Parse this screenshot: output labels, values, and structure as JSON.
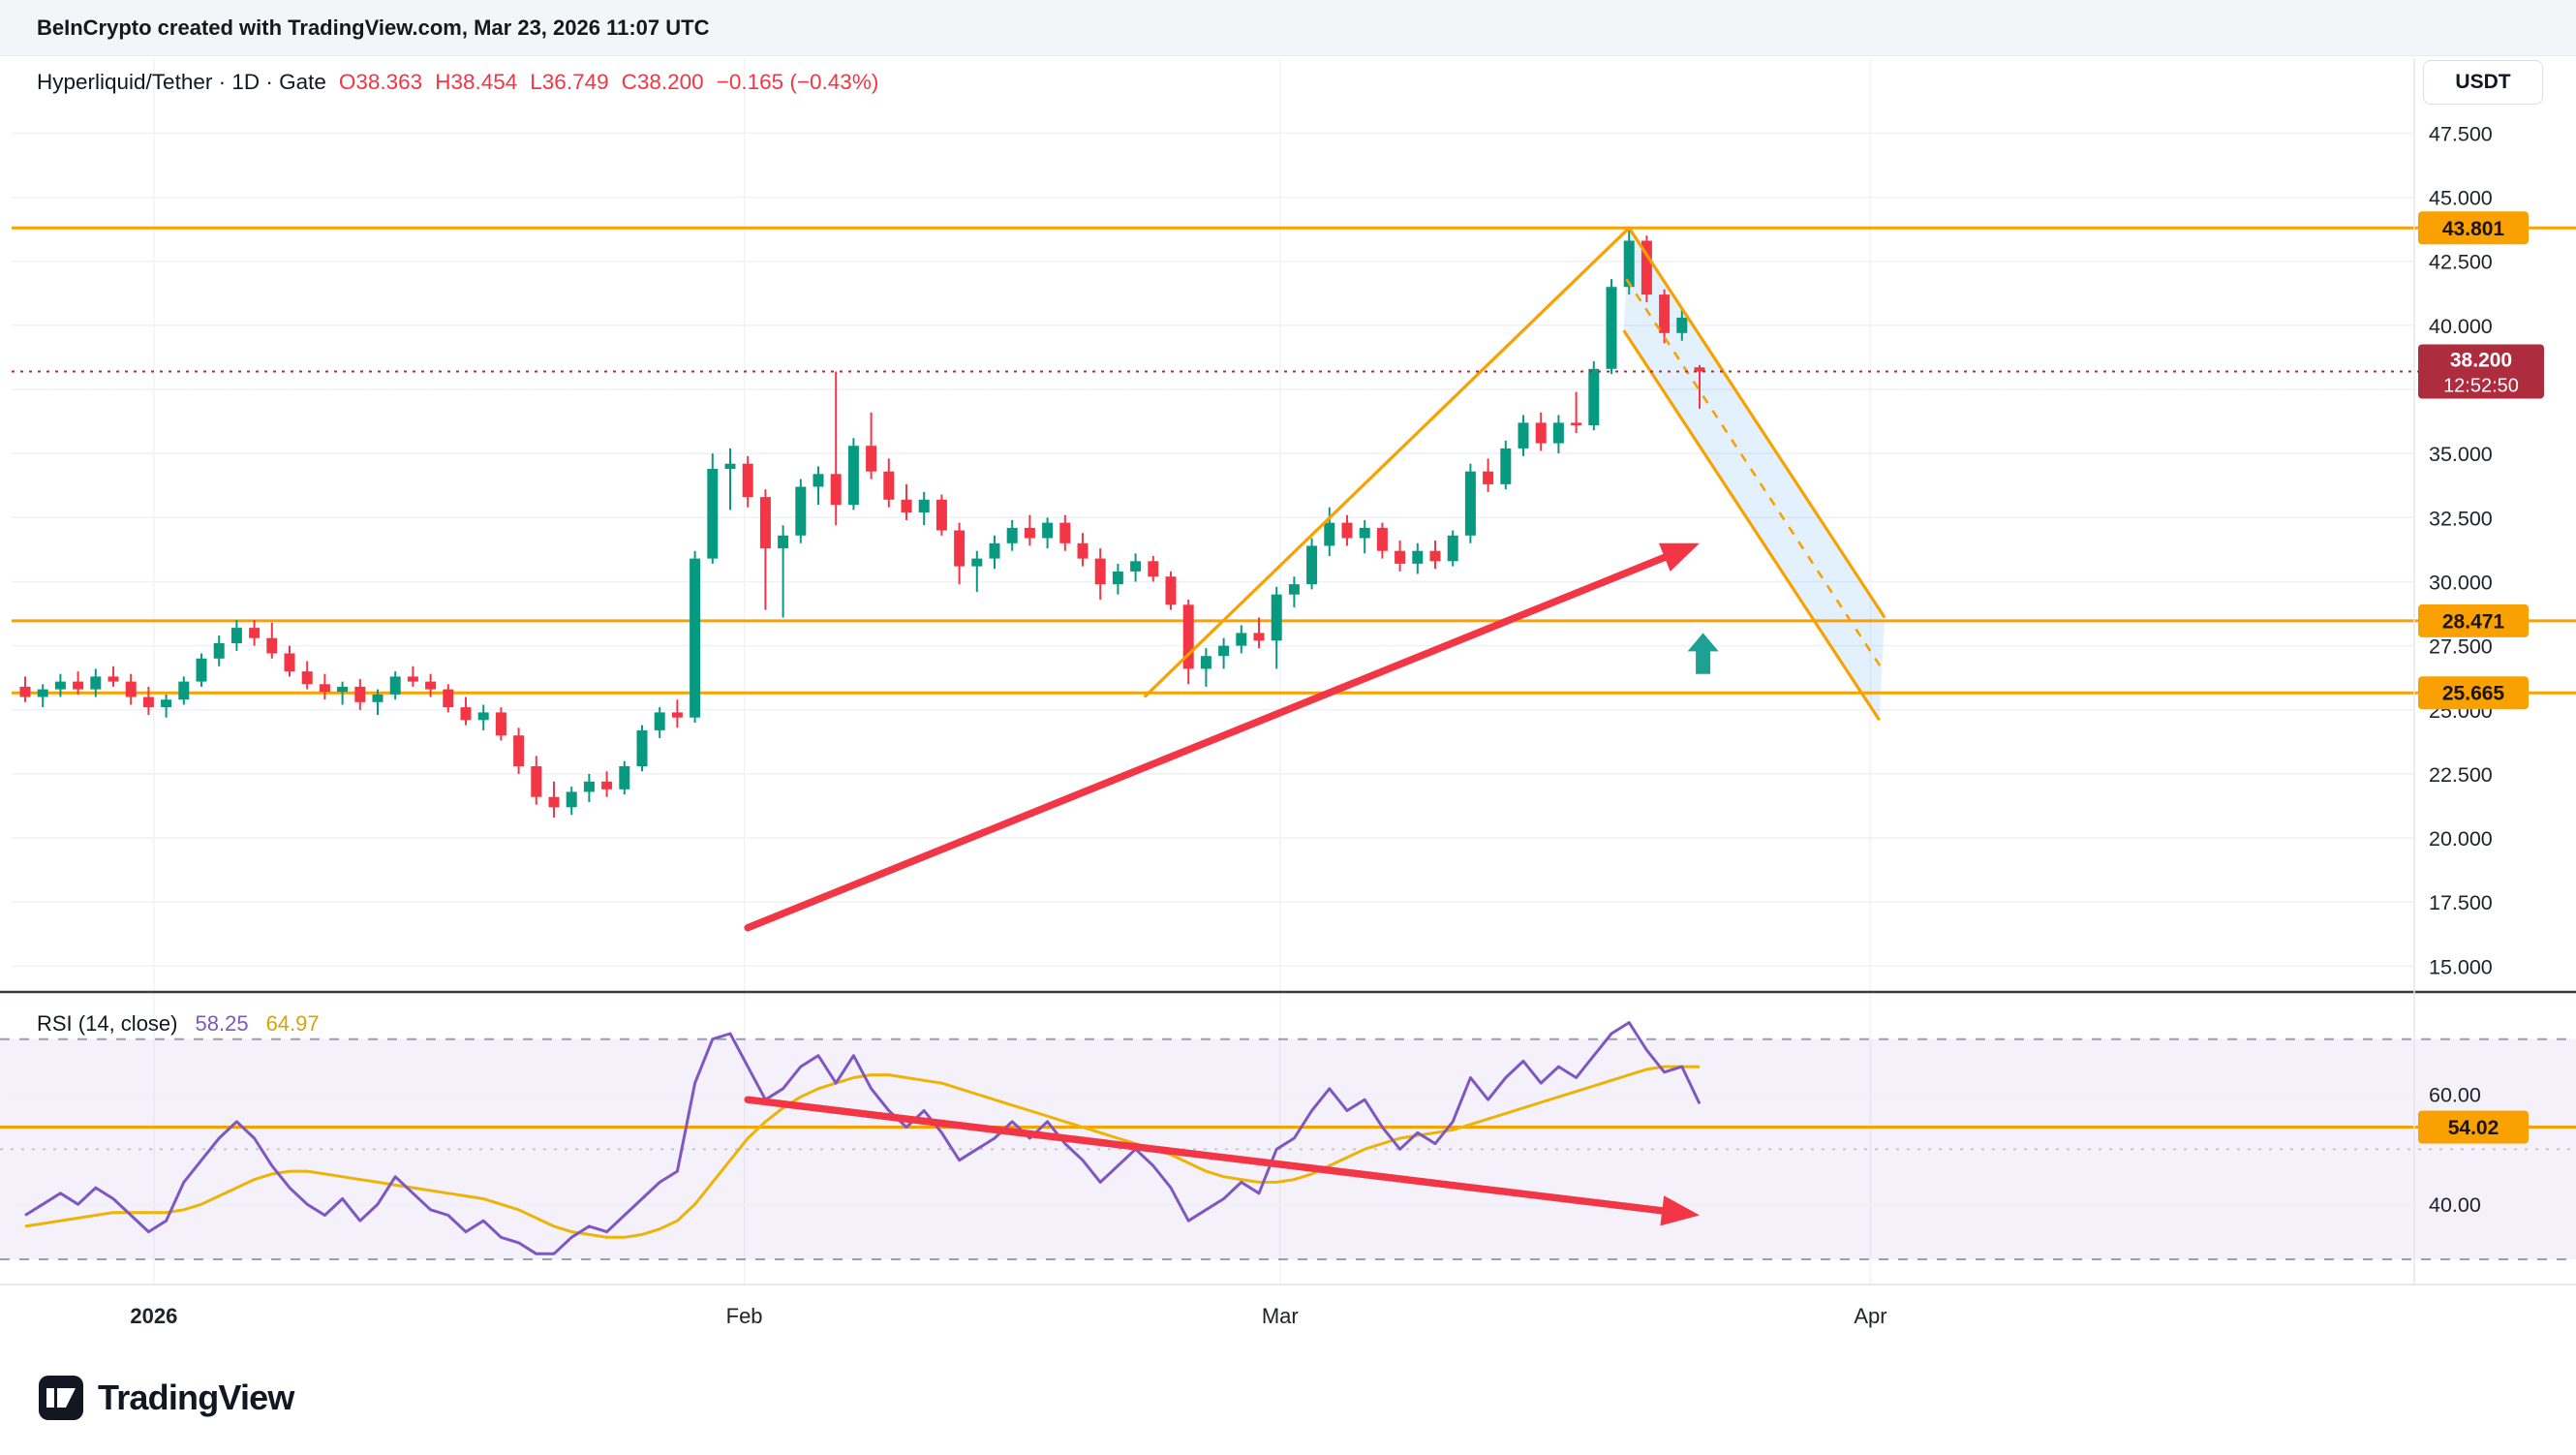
{
  "header": {
    "text": "BeInCrypto created with TradingView.com, Mar 23, 2026 11:07 UTC"
  },
  "legend": {
    "title": "Hyperliquid/Tether · 1D · Gate",
    "o": "O38.363",
    "h": "H38.454",
    "l": "L36.749",
    "c": "C38.200",
    "change": "−0.165 (−0.43%)"
  },
  "currency_button": {
    "label": "USDT"
  },
  "footer": {
    "brand": "TradingView"
  },
  "colors": {
    "candle_up": "#089981",
    "candle_down": "#f23645",
    "level_orange": "#f9a100",
    "label_orange_bg": "#f9a100",
    "label_orange_text": "#1c1405",
    "price_label_bg": "#ad2c3e",
    "price_label_text": "#ffffff",
    "rsi_purple": "#7e57c2",
    "rsi_ma_yellow": "#edb307",
    "rsi_band_fill": "rgba(126,87,194,0.085)",
    "band_dash": "#9b9eab",
    "mid_dash": "#c2c5cf",
    "arrow_red": "#f23645",
    "arrow_teal": "#1da192",
    "channel_fill": "rgba(33,150,243,0.13)",
    "grid": "#eef1f5",
    "axis_text": "#20232b",
    "separator_dark": "#363a45",
    "separator_light": "#dfe2e9"
  },
  "chart_data": {
    "type": "candlestick",
    "title": "Hyperliquid/Tether · 1D · Gate",
    "symbol": "Hyperliquid/Tether",
    "interval": "1D",
    "exchange": "Gate",
    "ohlc_current": {
      "open": 38.363,
      "high": 38.454,
      "low": 36.749,
      "close": 38.2,
      "change": -0.165,
      "change_pct": -0.43
    },
    "candles": [
      [
        25.9,
        26.3,
        25.3,
        25.5
      ],
      [
        25.5,
        26.0,
        25.1,
        25.8
      ],
      [
        25.8,
        26.4,
        25.5,
        26.1
      ],
      [
        26.1,
        26.5,
        25.6,
        25.8
      ],
      [
        25.8,
        26.6,
        25.5,
        26.3
      ],
      [
        26.3,
        26.7,
        25.9,
        26.1
      ],
      [
        26.1,
        26.4,
        25.2,
        25.5
      ],
      [
        25.5,
        25.9,
        24.8,
        25.1
      ],
      [
        25.1,
        25.6,
        24.7,
        25.4
      ],
      [
        25.4,
        26.3,
        25.2,
        26.1
      ],
      [
        26.1,
        27.2,
        25.9,
        27.0
      ],
      [
        27.0,
        27.9,
        26.7,
        27.6
      ],
      [
        27.6,
        28.5,
        27.3,
        28.2
      ],
      [
        28.2,
        28.5,
        27.5,
        27.8
      ],
      [
        27.8,
        28.4,
        27.0,
        27.2
      ],
      [
        27.2,
        27.5,
        26.3,
        26.5
      ],
      [
        26.5,
        26.9,
        25.8,
        26.0
      ],
      [
        26.0,
        26.4,
        25.4,
        25.7
      ],
      [
        25.7,
        26.1,
        25.2,
        25.9
      ],
      [
        25.9,
        26.2,
        25.0,
        25.3
      ],
      [
        25.3,
        25.8,
        24.8,
        25.6
      ],
      [
        25.6,
        26.5,
        25.4,
        26.3
      ],
      [
        26.3,
        26.7,
        25.9,
        26.1
      ],
      [
        26.1,
        26.4,
        25.5,
        25.8
      ],
      [
        25.8,
        26.0,
        24.9,
        25.1
      ],
      [
        25.1,
        25.5,
        24.4,
        24.6
      ],
      [
        24.6,
        25.2,
        24.2,
        24.9
      ],
      [
        24.9,
        25.1,
        23.8,
        24.0
      ],
      [
        24.0,
        24.3,
        22.5,
        22.8
      ],
      [
        22.8,
        23.2,
        21.3,
        21.6
      ],
      [
        21.6,
        22.2,
        20.8,
        21.2
      ],
      [
        21.2,
        22.0,
        20.9,
        21.8
      ],
      [
        21.8,
        22.5,
        21.4,
        22.2
      ],
      [
        22.2,
        22.6,
        21.6,
        21.9
      ],
      [
        21.9,
        23.0,
        21.7,
        22.8
      ],
      [
        22.8,
        24.4,
        22.6,
        24.2
      ],
      [
        24.2,
        25.1,
        23.9,
        24.9
      ],
      [
        24.9,
        25.4,
        24.3,
        24.7
      ],
      [
        24.7,
        31.2,
        24.5,
        30.9
      ],
      [
        30.9,
        35.0,
        30.7,
        34.4
      ],
      [
        34.4,
        35.2,
        32.8,
        34.6
      ],
      [
        34.6,
        34.9,
        32.9,
        33.3
      ],
      [
        33.3,
        33.6,
        28.9,
        31.3
      ],
      [
        31.3,
        32.2,
        28.6,
        31.8
      ],
      [
        31.8,
        34.0,
        31.5,
        33.7
      ],
      [
        33.7,
        34.5,
        33.0,
        34.2
      ],
      [
        34.2,
        38.2,
        32.2,
        33.0
      ],
      [
        33.0,
        35.6,
        32.8,
        35.3
      ],
      [
        35.3,
        36.6,
        34.0,
        34.3
      ],
      [
        34.3,
        34.8,
        32.9,
        33.2
      ],
      [
        33.2,
        33.8,
        32.4,
        32.7
      ],
      [
        32.7,
        33.5,
        32.2,
        33.2
      ],
      [
        33.2,
        33.4,
        31.8,
        32.0
      ],
      [
        32.0,
        32.3,
        29.9,
        30.6
      ],
      [
        30.6,
        31.2,
        29.6,
        30.9
      ],
      [
        30.9,
        31.8,
        30.5,
        31.5
      ],
      [
        31.5,
        32.4,
        31.2,
        32.1
      ],
      [
        32.1,
        32.6,
        31.4,
        31.7
      ],
      [
        31.7,
        32.5,
        31.3,
        32.3
      ],
      [
        32.3,
        32.6,
        31.2,
        31.5
      ],
      [
        31.5,
        31.9,
        30.6,
        30.9
      ],
      [
        30.9,
        31.3,
        29.3,
        29.9
      ],
      [
        29.9,
        30.7,
        29.5,
        30.4
      ],
      [
        30.4,
        31.1,
        30.0,
        30.8
      ],
      [
        30.8,
        31.0,
        30.0,
        30.2
      ],
      [
        30.2,
        30.4,
        28.9,
        29.1
      ],
      [
        29.1,
        29.3,
        26.0,
        26.6
      ],
      [
        26.6,
        27.4,
        25.9,
        27.1
      ],
      [
        27.1,
        27.8,
        26.6,
        27.5
      ],
      [
        27.5,
        28.3,
        27.2,
        28.0
      ],
      [
        28.0,
        28.6,
        27.4,
        27.7
      ],
      [
        27.7,
        29.8,
        26.6,
        29.5
      ],
      [
        29.5,
        30.2,
        29.0,
        29.9
      ],
      [
        29.9,
        31.7,
        29.7,
        31.4
      ],
      [
        31.4,
        32.9,
        31.0,
        32.3
      ],
      [
        32.3,
        32.6,
        31.4,
        31.7
      ],
      [
        31.7,
        32.4,
        31.1,
        32.1
      ],
      [
        32.1,
        32.3,
        30.9,
        31.2
      ],
      [
        31.2,
        31.6,
        30.4,
        30.7
      ],
      [
        30.7,
        31.5,
        30.3,
        31.2
      ],
      [
        31.2,
        31.6,
        30.5,
        30.8
      ],
      [
        30.8,
        32.0,
        30.6,
        31.8
      ],
      [
        31.8,
        34.6,
        31.5,
        34.3
      ],
      [
        34.3,
        34.8,
        33.5,
        33.8
      ],
      [
        33.8,
        35.5,
        33.6,
        35.2
      ],
      [
        35.2,
        36.5,
        34.9,
        36.2
      ],
      [
        36.2,
        36.6,
        35.1,
        35.4
      ],
      [
        35.4,
        36.5,
        35.0,
        36.2
      ],
      [
        36.2,
        37.4,
        35.8,
        36.1
      ],
      [
        36.1,
        38.6,
        35.9,
        38.3
      ],
      [
        38.3,
        41.8,
        38.1,
        41.5
      ],
      [
        41.5,
        43.8,
        41.2,
        43.3
      ],
      [
        43.3,
        43.5,
        40.9,
        41.2
      ],
      [
        41.2,
        41.4,
        39.3,
        39.7
      ],
      [
        39.7,
        40.6,
        39.4,
        40.3
      ],
      [
        38.363,
        38.454,
        36.749,
        38.2
      ]
    ],
    "levels": [
      {
        "label": "43.801",
        "price": 43.801
      },
      {
        "label": "28.471",
        "price": 28.471
      },
      {
        "label": "25.665",
        "price": 25.665
      }
    ],
    "last_price": {
      "label": "38.200",
      "price": 38.2,
      "countdown": "12:52:50"
    },
    "price_ticks": [
      {
        "label": "47.500",
        "price": 47.5
      },
      {
        "label": "45.000",
        "price": 45.0
      },
      {
        "label": "42.500",
        "price": 42.5
      },
      {
        "label": "40.000",
        "price": 40.0
      },
      {
        "label": "35.000",
        "price": 35.0
      },
      {
        "label": "32.500",
        "price": 32.5
      },
      {
        "label": "30.000",
        "price": 30.0
      },
      {
        "label": "27.500",
        "price": 27.5
      },
      {
        "label": "25.000",
        "price": 25.0
      },
      {
        "label": "22.500",
        "price": 22.5
      },
      {
        "label": "20.000",
        "price": 20.0
      },
      {
        "label": "17.500",
        "price": 17.5
      },
      {
        "label": "15.000",
        "price": 15.0
      }
    ],
    "grid_prices": [
      47.5,
      45,
      42.5,
      40,
      37.5,
      35,
      32.5,
      30,
      27.5,
      25,
      22.5,
      20,
      17.5,
      15
    ],
    "time_ticks": [
      {
        "label": "2026",
        "i": 7.3,
        "bold": true
      },
      {
        "label": "Feb",
        "i": 40.8,
        "bold": false
      },
      {
        "label": "Mar",
        "i": 71.2,
        "bold": false
      },
      {
        "label": "Apr",
        "i": 104.7,
        "bold": false
      }
    ],
    "drawings": {
      "trendline_up": {
        "i1": 63.5,
        "p1": 25.5,
        "i2": 91,
        "p2": 43.8
      },
      "channel": {
        "a": {
          "i": 91,
          "p": 43.8
        },
        "b": {
          "i": 105.5,
          "p": 28.6
        },
        "c": {
          "i": 105.2,
          "p": 24.6
        },
        "d": {
          "i": 90.7,
          "p": 39.8
        }
      },
      "arrow_main": {
        "i1": 41,
        "p1": 16.5,
        "i2": 95,
        "p2": 31.5
      },
      "arrow_up_teal": {
        "i": 95.2,
        "p_top": 28.0,
        "p_bot": 26.4
      },
      "arrow_rsi": {
        "i1": 41,
        "r1": 59,
        "i2": 95,
        "r2": 38
      }
    },
    "rsi": {
      "label": "RSI (14, close)",
      "value": "58.25",
      "ma_value": "64.97",
      "bands": {
        "upper": 70,
        "middle": 50,
        "lower": 30
      },
      "level_line": {
        "label": "54.02",
        "value": 54.02
      },
      "ticks": [
        {
          "label": "60.00",
          "v": 60
        },
        {
          "label": "40.00",
          "v": 40
        }
      ],
      "line": [
        38,
        40,
        42,
        40,
        43,
        41,
        38,
        35,
        37,
        44,
        48,
        52,
        55,
        52,
        47,
        43,
        40,
        38,
        41,
        37,
        40,
        45,
        42,
        39,
        38,
        35,
        37,
        34,
        33,
        31,
        31,
        34,
        36,
        35,
        38,
        41,
        44,
        46,
        62,
        70,
        71,
        65,
        59,
        61,
        65,
        67,
        62,
        67,
        61,
        57,
        54,
        57,
        53,
        48,
        50,
        52,
        55,
        52,
        55,
        51,
        48,
        44,
        47,
        50,
        47,
        43,
        37,
        39,
        41,
        44,
        42,
        50,
        52,
        57,
        61,
        57,
        59,
        54,
        50,
        53,
        51,
        55,
        63,
        59,
        63,
        66,
        62,
        65,
        63,
        67,
        71,
        73,
        68,
        64,
        65,
        58.25
      ],
      "ma": [
        36,
        36.5,
        37,
        37.5,
        38,
        38.5,
        38.5,
        38.5,
        38.5,
        39,
        40,
        41.5,
        43,
        44.5,
        45.5,
        46,
        46,
        45.5,
        45,
        44.5,
        44,
        43.5,
        43,
        42.5,
        42,
        41.5,
        41,
        40,
        39,
        37.5,
        36,
        35,
        34.5,
        34,
        34,
        34.5,
        35.5,
        37,
        40,
        44,
        48,
        52,
        55,
        57.5,
        59.5,
        61,
        62,
        63,
        63.5,
        63.5,
        63,
        62.5,
        62,
        61,
        60,
        59,
        58,
        57,
        56,
        55,
        54,
        53,
        52,
        51,
        50,
        49,
        47.5,
        46,
        45,
        44.5,
        44,
        44,
        44.5,
        45.5,
        47,
        48.5,
        50,
        51,
        52,
        52.5,
        53,
        53.5,
        54.5,
        55.5,
        56.5,
        57.5,
        58.5,
        59.5,
        60.5,
        61.5,
        62.5,
        63.5,
        64.5,
        65,
        65,
        64.97
      ]
    }
  }
}
